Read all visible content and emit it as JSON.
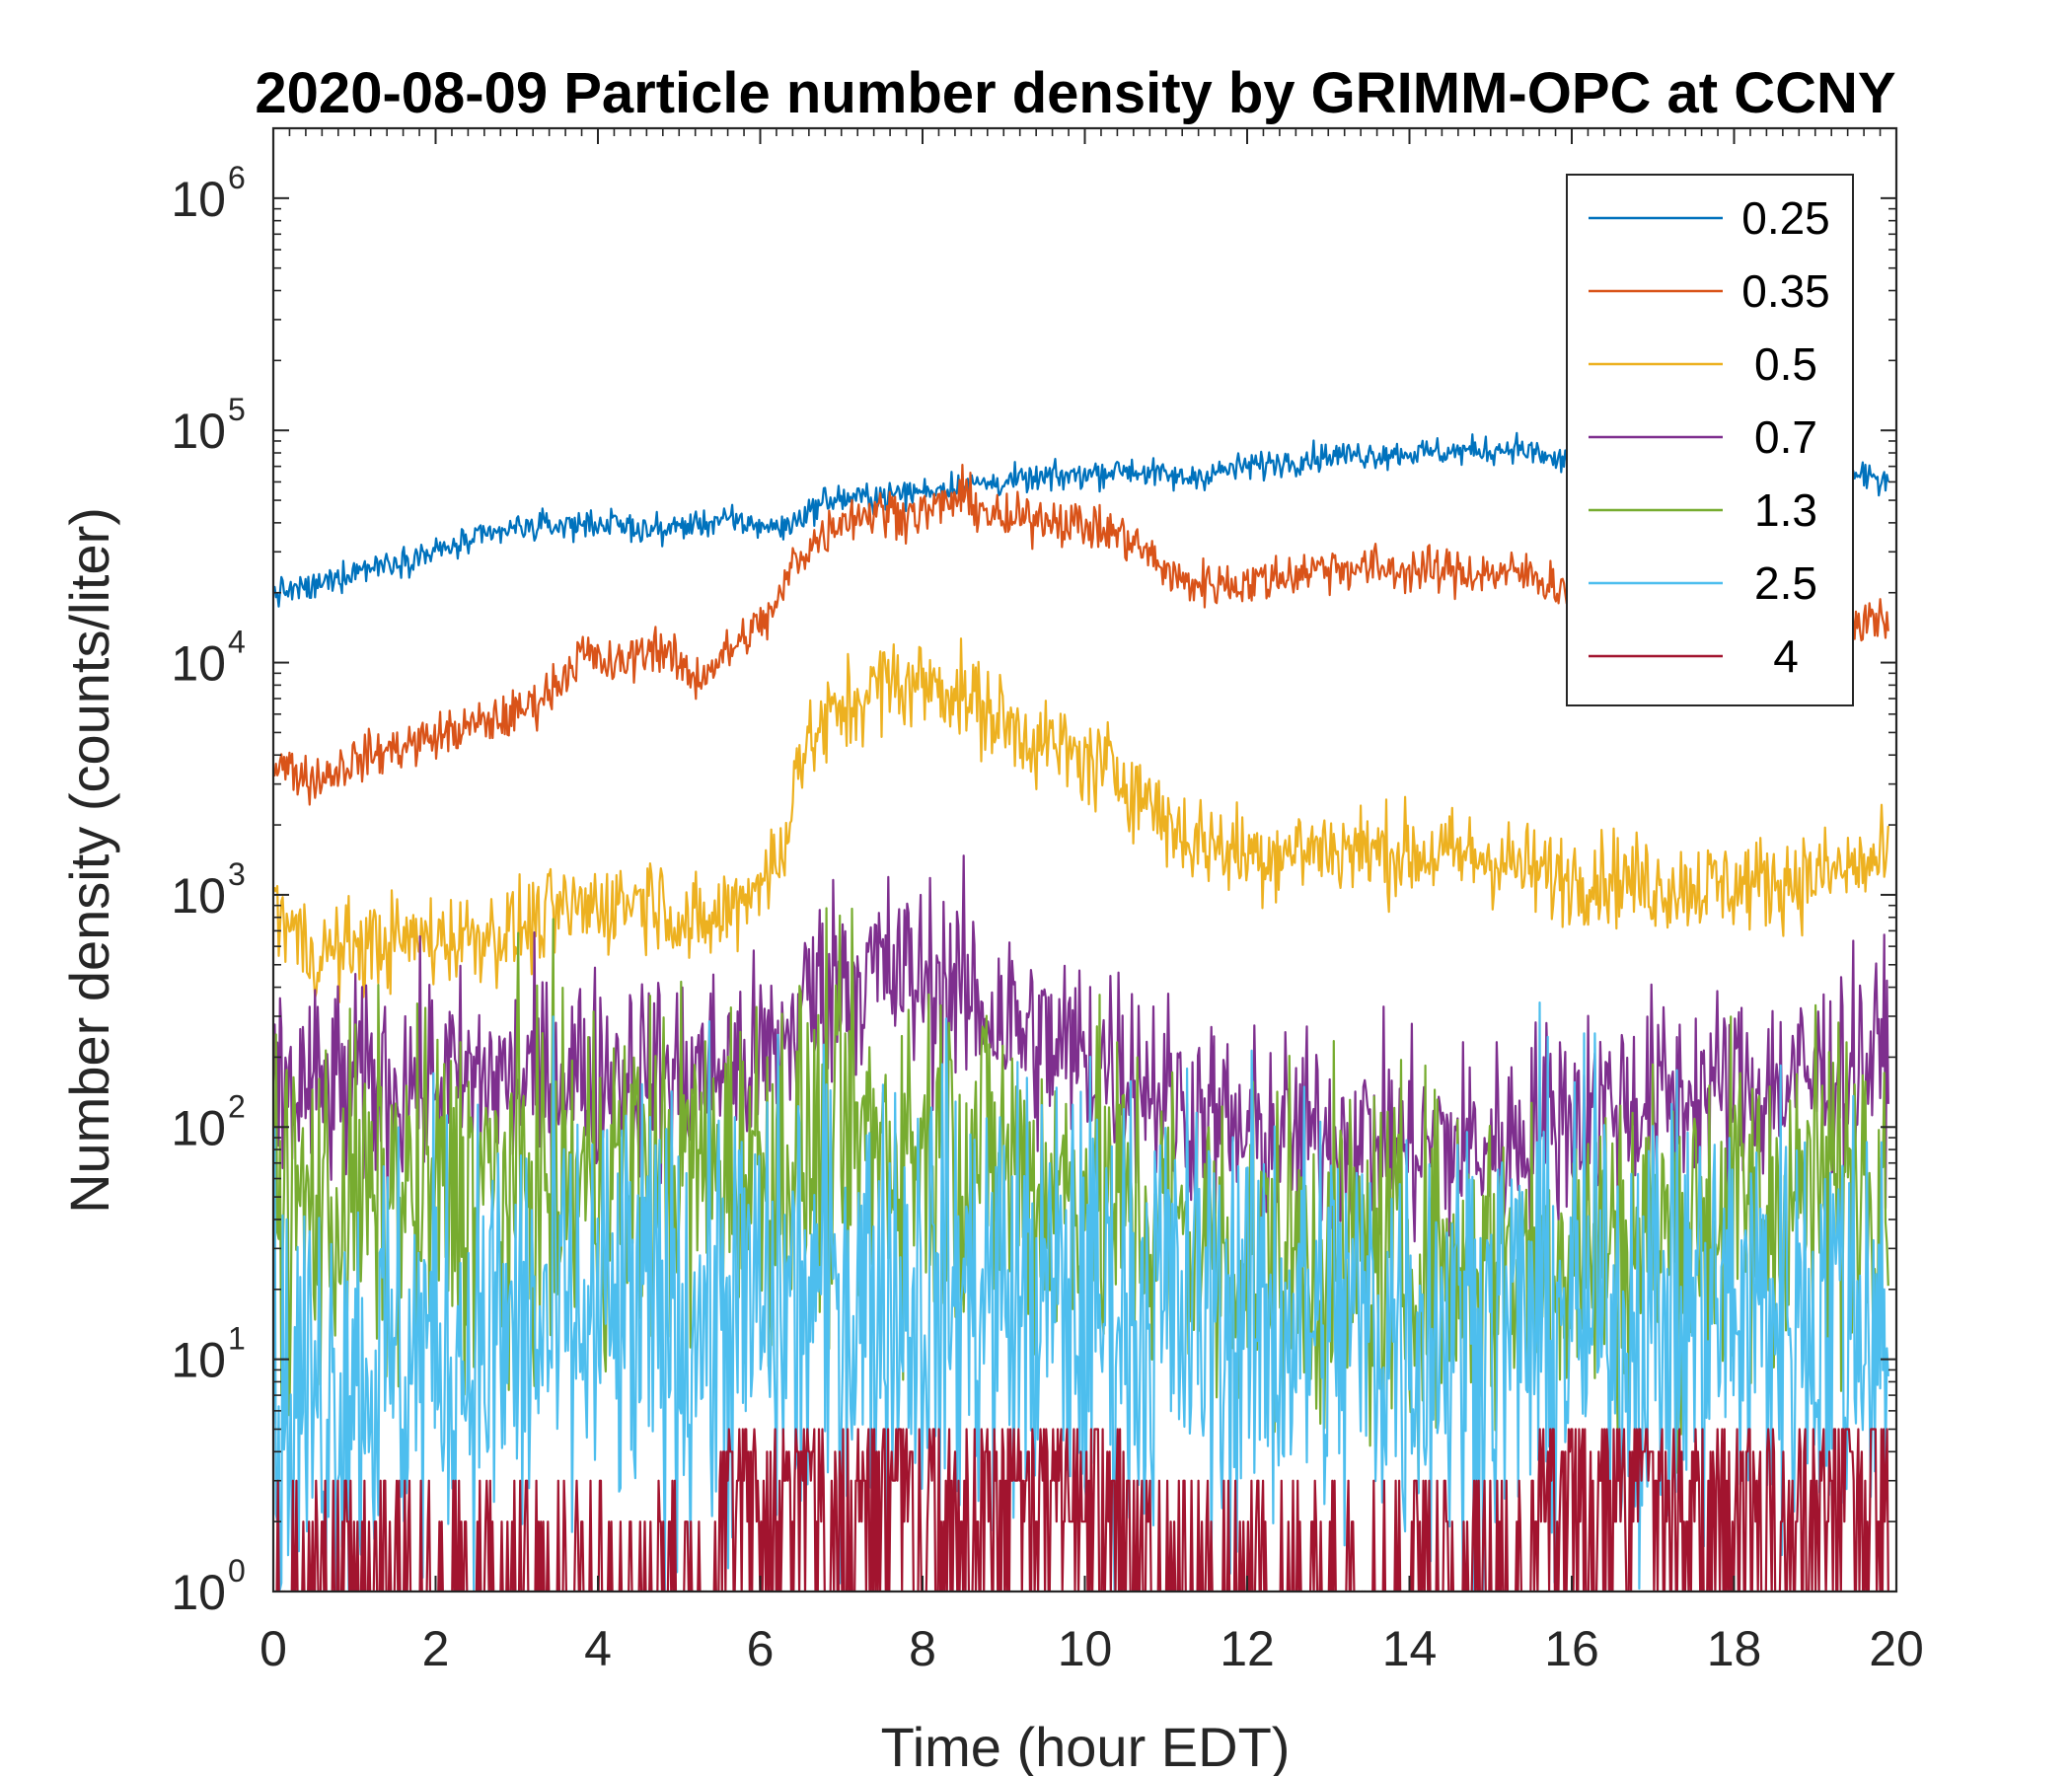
{
  "chart_data": {
    "type": "line",
    "title": "2020-08-09 Particle number density by GRIMM-OPC at CCNY",
    "xlabel": "Time (hour EDT)",
    "ylabel": "Number density (counts/liter)",
    "xlim": [
      0,
      20
    ],
    "ylim": [
      1,
      2000000
    ],
    "yscale": "log",
    "x_ticks": [
      0,
      2,
      4,
      6,
      8,
      10,
      12,
      14,
      16,
      18,
      20
    ],
    "x_tick_labels": [
      "0",
      "2",
      "4",
      "6",
      "8",
      "10",
      "12",
      "14",
      "16",
      "18",
      "20"
    ],
    "y_ticks": [
      1,
      10,
      100,
      1000,
      10000,
      100000,
      1000000
    ],
    "y_tick_base": "10",
    "y_tick_exponents": [
      "0",
      "1",
      "2",
      "3",
      "4",
      "5",
      "6"
    ],
    "legend_position": "top-right",
    "series": [
      {
        "name": "0.25",
        "color": "#0072BD",
        "noise": 0.03,
        "x": [
          0,
          0.5,
          1,
          2,
          3,
          4,
          4.7,
          5.5,
          6.3,
          6.8,
          7.5,
          8.5,
          9.5,
          10.5,
          11.2,
          12,
          13,
          14,
          15,
          15.3,
          15.8,
          16.5,
          17.5,
          18.5,
          19.9
        ],
        "y": [
          20000,
          21000,
          25000,
          30000,
          38000,
          40000,
          37000,
          41000,
          38000,
          50000,
          52000,
          58000,
          62000,
          68000,
          62000,
          70000,
          78000,
          80000,
          82000,
          85000,
          74000,
          72000,
          68000,
          65000,
          62000
        ]
      },
      {
        "name": "0.35",
        "color": "#D95319",
        "noise": 0.05,
        "x": [
          0,
          0.5,
          1,
          2,
          3,
          3.4,
          3.8,
          4.2,
          4.7,
          5.2,
          5.6,
          6.2,
          6.4,
          7,
          7.5,
          8,
          8.5,
          9,
          9.5,
          10.5,
          11.2,
          12,
          13,
          14,
          15.5,
          16,
          17,
          18,
          19,
          19.9
        ],
        "y": [
          3800,
          3100,
          3800,
          4800,
          6000,
          7500,
          11000,
          9500,
          12000,
          8500,
          11000,
          17000,
          27000,
          42000,
          45000,
          44000,
          52000,
          40000,
          43000,
          35000,
          22000,
          22000,
          26000,
          25000,
          24000,
          20000,
          18000,
          17000,
          16000,
          15000
        ]
      },
      {
        "name": "0.5",
        "color": "#EDB120",
        "noise": 0.1,
        "x": [
          0,
          0.5,
          1,
          2,
          3,
          3.6,
          4,
          4.7,
          5.2,
          5.6,
          6,
          6.3,
          6.4,
          6.8,
          7.5,
          8.3,
          9,
          9.5,
          10.5,
          11.2,
          12,
          13,
          14,
          15,
          15.7,
          16.5,
          17,
          18,
          19,
          19.9
        ],
        "y": [
          900,
          550,
          600,
          650,
          700,
          850,
          900,
          1000,
          700,
          850,
          1200,
          1400,
          3500,
          5500,
          8200,
          8000,
          5500,
          4500,
          3200,
          1800,
          1500,
          1600,
          1500,
          1450,
          1200,
          1200,
          1100,
          1100,
          1200,
          1400
        ]
      },
      {
        "name": "0.7",
        "color": "#7E2F8E",
        "noise": 0.22,
        "x": [
          0,
          1,
          2,
          3,
          4,
          5,
          6,
          6.3,
          6.5,
          7,
          7.5,
          8.2,
          9,
          9.5,
          10.5,
          11.2,
          12,
          13,
          14,
          15,
          15.7,
          16.5,
          17.5,
          18.5,
          19.5,
          19.9
        ],
        "y": [
          140,
          150,
          160,
          160,
          175,
          170,
          190,
          220,
          340,
          450,
          460,
          420,
          300,
          220,
          190,
          120,
          90,
          90,
          85,
          80,
          110,
          125,
          140,
          150,
          180,
          210
        ]
      },
      {
        "name": "1.3",
        "color": "#77AC30",
        "noise": 0.38,
        "x": [
          0,
          1,
          2,
          3,
          4,
          5,
          6,
          7,
          8,
          8.8,
          9.5,
          10.5,
          11.5,
          12.5,
          13.5,
          14.5,
          15.5,
          16.5,
          17.5,
          18.5,
          19.5,
          19.9
        ],
        "y": [
          45,
          45,
          50,
          55,
          60,
          65,
          70,
          85,
          85,
          75,
          55,
          45,
          32,
          28,
          26,
          25,
          28,
          32,
          38,
          45,
          60,
          85
        ]
      },
      {
        "name": "2.5",
        "color": "#4DBEEE",
        "noise": 0.5,
        "x": [
          0,
          0.5,
          1,
          2,
          3,
          4,
          5,
          6,
          7,
          8,
          9,
          10,
          11,
          12,
          13,
          14,
          15,
          16,
          17,
          18,
          19,
          19.9
        ],
        "y": [
          6,
          7,
          9,
          11,
          12,
          14,
          15,
          16,
          19,
          20,
          19,
          17,
          16,
          15,
          14,
          14,
          14,
          15,
          15,
          16,
          16,
          17
        ]
      },
      {
        "name": "4",
        "color": "#A2142F",
        "noise": 0,
        "x": [
          0,
          19.9
        ],
        "y": [
          1,
          3
        ]
      }
    ]
  }
}
